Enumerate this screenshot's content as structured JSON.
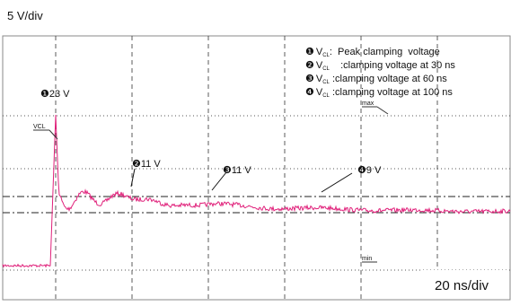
{
  "scale": {
    "vertical": "5 V/div",
    "horizontal": "20 ns/div"
  },
  "markers": {
    "max": "max",
    "min": "min",
    "vcl": "VCL"
  },
  "annotations": [
    {
      "badge": "❶",
      "text": "23 V"
    },
    {
      "badge": "❷",
      "text": "11 V"
    },
    {
      "badge": "❸",
      "text": "11 V"
    },
    {
      "badge": "❹",
      "text": "9 V"
    }
  ],
  "legend": [
    {
      "badge": "❶",
      "symbol": "V",
      "sub": "CL",
      "text": ":  Peak clamping  voltage"
    },
    {
      "badge": "❷",
      "symbol": "V",
      "sub": "CL",
      "text": "    :clamping voltage at 30 ns"
    },
    {
      "badge": "❸",
      "symbol": "V",
      "sub": "CL",
      "text": " :clamping voltage at 60 ns"
    },
    {
      "badge": "❹",
      "symbol": "V",
      "sub": "CL",
      "text": " :clamping voltage at 100 ns"
    }
  ]
}
